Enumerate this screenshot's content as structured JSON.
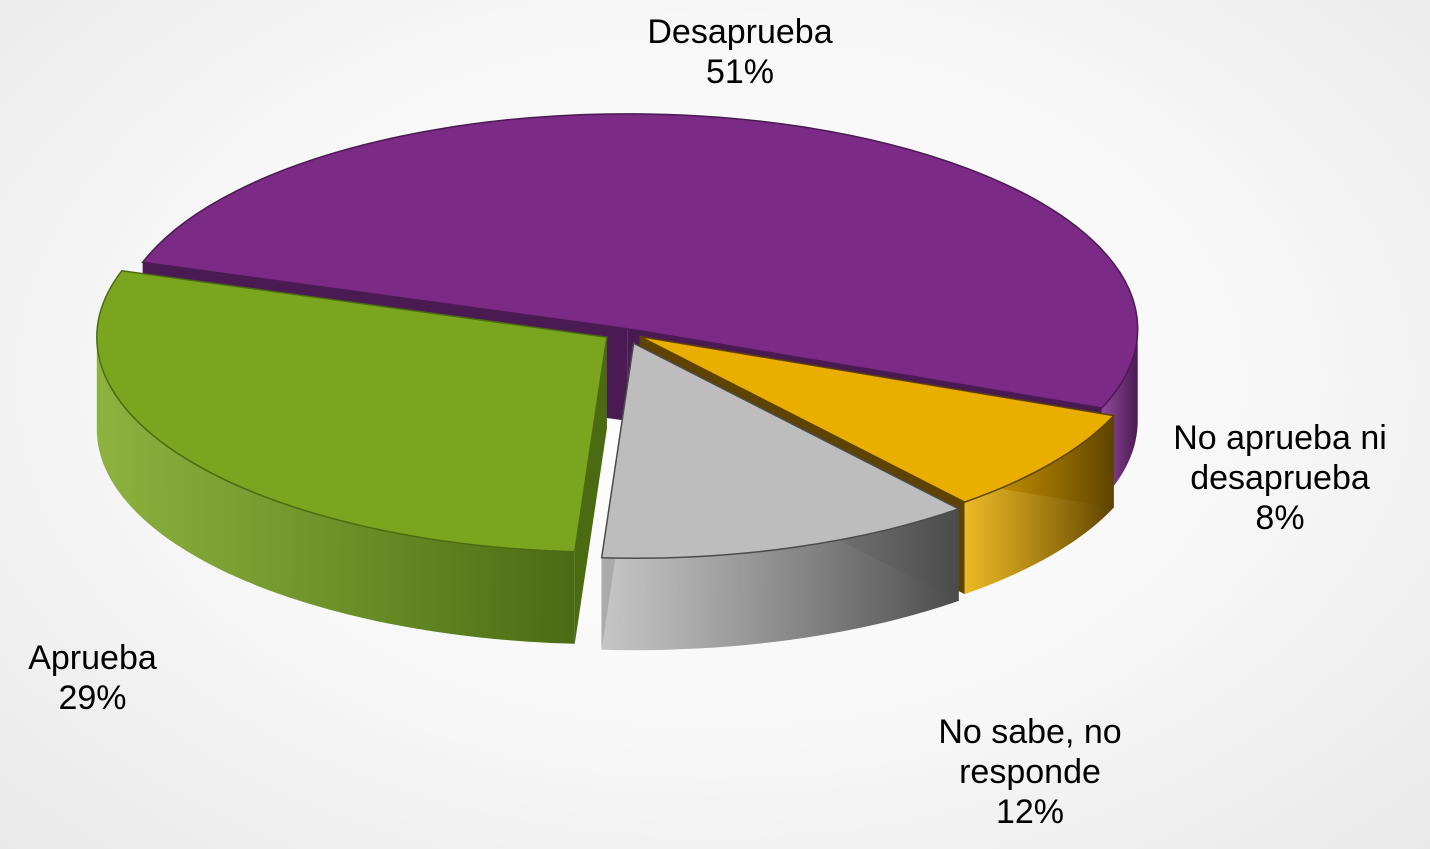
{
  "chart_data": {
    "type": "pie",
    "style": "3d-exploded",
    "legend": "none",
    "slices": [
      {
        "label": "Desaprueba",
        "label_lines": [
          "Desaprueba"
        ],
        "value": 51,
        "display": "51%",
        "color": "#7B2A86",
        "side_color": "#4A1A52"
      },
      {
        "label": "No aprueba ni desaprueba",
        "label_lines": [
          "No aprueba ni",
          "desaprueba"
        ],
        "value": 8,
        "display": "8%",
        "color": "#E9AE00",
        "side_color": "#5E4300"
      },
      {
        "label": "No sabe, no responde",
        "label_lines": [
          "No sabe, no",
          "responde"
        ],
        "value": 12,
        "display": "12%",
        "color": "#BDBDBD",
        "side_color": "#4B4B4B"
      },
      {
        "label": "Aprueba",
        "label_lines": [
          "Aprueba"
        ],
        "value": 29,
        "display": "29%",
        "color": "#7AA61F",
        "side_color": "#4A6B12"
      }
    ]
  }
}
